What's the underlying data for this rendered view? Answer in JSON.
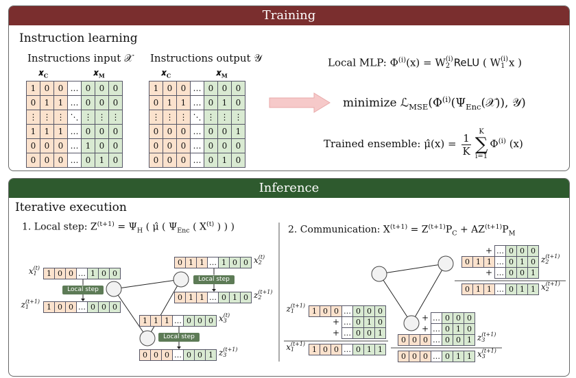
{
  "training": {
    "header": "Training",
    "heading": "Instruction learning",
    "input": {
      "title": [
        {
          "t": "Instructions input 𝒳"
        }
      ],
      "column_labels": [
        {
          "symbol": "𝒙",
          "subscript": "C"
        },
        {
          "symbol": "𝒙",
          "subscript": "M"
        }
      ],
      "rows": [
        [
          "1",
          "0",
          "0",
          "…",
          "0",
          "0",
          "0"
        ],
        [
          "0",
          "1",
          "1",
          "…",
          "0",
          "0",
          "0"
        ],
        [
          "⋮",
          "⋮",
          "⋮",
          "⋱",
          "⋮",
          "⋮",
          "⋮"
        ],
        [
          "1",
          "1",
          "1",
          "…",
          "0",
          "0",
          "0"
        ],
        [
          "0",
          "0",
          "0",
          "…",
          "1",
          "0",
          "0"
        ],
        [
          "0",
          "0",
          "0",
          "…",
          "0",
          "1",
          "0"
        ]
      ]
    },
    "output": {
      "title": [
        {
          "t": "Instructions output 𝒴"
        }
      ],
      "column_labels": [
        {
          "symbol": "𝒙",
          "subscript": "C"
        },
        {
          "symbol": "𝒙",
          "subscript": "M"
        }
      ],
      "rows": [
        [
          "1",
          "0",
          "0",
          "…",
          "0",
          "0",
          "0"
        ],
        [
          "0",
          "1",
          "1",
          "…",
          "0",
          "1",
          "0"
        ],
        [
          "⋮",
          "⋮",
          "⋮",
          "⋱",
          "⋮",
          "⋮",
          "⋮"
        ],
        [
          "0",
          "0",
          "0",
          "…",
          "0",
          "0",
          "1"
        ],
        [
          "0",
          "0",
          "0",
          "…",
          "0",
          "0",
          "0"
        ],
        [
          "0",
          "0",
          "0",
          "…",
          "0",
          "1",
          "0"
        ]
      ]
    },
    "formulas": [
      [
        {
          "t": "Local MLP: Φ"
        },
        {
          "sup": "(i)"
        },
        {
          "t": "(x) = W"
        },
        {
          "sup": "(i)",
          "sub": "2"
        },
        {
          "t": "ReLU"
        },
        {
          "t": " ( W"
        },
        {
          "sup": "(i)",
          "sub": "1"
        },
        {
          "t": "x )"
        }
      ],
      [
        {
          "t": "minimize ℒ"
        },
        {
          "sub": "MSE"
        },
        {
          "t": "(Φ"
        },
        {
          "sup": "(i)"
        },
        {
          "t": "(Ψ"
        },
        {
          "sub": "Enc"
        },
        {
          "t": "(𝒳)), 𝒴)"
        }
      ],
      [
        {
          "t": "Trained ensemble: μ̂(x) = "
        },
        {
          "frac": [
            "1",
            "K"
          ]
        },
        {
          "sum": "∑",
          "over": "K",
          "under": "i=1"
        },
        {
          "t": "Φ"
        },
        {
          "sup": "(i)"
        },
        {
          "t": " (x)"
        }
      ]
    ]
  },
  "inference": {
    "header": "Inference",
    "heading": "Iterative execution",
    "local_step": [
      {
        "t": "1. Local step: Z"
      },
      {
        "sup": "(t+1)"
      },
      {
        "t": " = Ψ"
      },
      {
        "sub": "H"
      },
      {
        "t": " ( μ̂ ( Ψ"
      },
      {
        "sub": "Enc"
      },
      {
        "t": " ( X"
      },
      {
        "sup": "(t)"
      },
      {
        "t": " ) ) )"
      }
    ],
    "communication": [
      {
        "t": "2. Communication: X"
      },
      {
        "sup": "(t+1)"
      },
      {
        "t": " = Z"
      },
      {
        "sup": "(t+1)"
      },
      {
        "t": "P"
      },
      {
        "sub": "C"
      },
      {
        "t": " + AZ"
      },
      {
        "sup": "(t+1)"
      },
      {
        "t": "P"
      },
      {
        "sub": "M"
      }
    ],
    "left": {
      "vectors": [
        {
          "label": [
            {
              "t": "x"
            },
            {
              "sup": "(t)",
              "sub": "1"
            }
          ],
          "cells": [
            "1",
            "0",
            "0",
            "…",
            "1",
            "0",
            "0"
          ]
        },
        {
          "label": [
            {
              "t": "z"
            },
            {
              "sup": "(t+1)",
              "sub": "1"
            }
          ],
          "cells": [
            "1",
            "0",
            "0",
            "…",
            "0",
            "0",
            "0"
          ]
        },
        {
          "label": [
            {
              "t": "x"
            },
            {
              "sup": "(t)",
              "sub": "2"
            }
          ],
          "cells": [
            "0",
            "1",
            "1",
            "…",
            "1",
            "0",
            "0"
          ]
        },
        {
          "label": [
            {
              "t": "z"
            },
            {
              "sup": "(t+1)",
              "sub": "2"
            }
          ],
          "cells": [
            "0",
            "1",
            "1",
            "…",
            "0",
            "1",
            "0"
          ]
        },
        {
          "label": [
            {
              "t": "x"
            },
            {
              "sup": "(t)",
              "sub": "3"
            }
          ],
          "cells": [
            "1",
            "1",
            "1",
            "…",
            "0",
            "0",
            "0"
          ]
        },
        {
          "label": [
            {
              "t": "z"
            },
            {
              "sup": "(t+1)",
              "sub": "3"
            }
          ],
          "cells": [
            "0",
            "0",
            "0",
            "…",
            "0",
            "0",
            "1"
          ]
        }
      ],
      "badges": [
        "Local step",
        "Local step",
        "Local step"
      ]
    },
    "right": {
      "groups": [
        {
          "label": [
            {
              "t": "z"
            },
            {
              "sup": "(t+1)",
              "sub": "1"
            }
          ],
          "rows": [
            {
              "cells": [
                "1",
                "0",
                "0",
                "…",
                "0",
                "0",
                "0"
              ]
            },
            {
              "prefix": "+",
              "cells": [
                null,
                null,
                null,
                "…",
                "0",
                "1",
                "0"
              ]
            },
            {
              "prefix": "+",
              "cells": [
                null,
                null,
                null,
                "…",
                "0",
                "0",
                "1"
              ]
            }
          ],
          "result": {
            "label": [
              {
                "t": "x"
              },
              {
                "sup": "(t+1)",
                "sub": "1"
              }
            ],
            "cells": [
              "1",
              "0",
              "0",
              "…",
              "0",
              "1",
              "1"
            ]
          }
        },
        {
          "label": [
            {
              "t": "z"
            },
            {
              "sup": "(t+1)",
              "sub": "2"
            }
          ],
          "rows": [
            {
              "prefix": "+",
              "cells": [
                null,
                null,
                null,
                "…",
                "0",
                "0",
                "0"
              ]
            },
            {
              "cells": [
                "0",
                "1",
                "1",
                "…",
                "0",
                "1",
                "0"
              ]
            },
            {
              "prefix": "+",
              "cells": [
                null,
                null,
                null,
                "…",
                "0",
                "0",
                "1"
              ]
            }
          ],
          "result": {
            "label": [
              {
                "t": "x"
              },
              {
                "sup": "(t+1)",
                "sub": "2"
              }
            ],
            "cells": [
              "0",
              "1",
              "1",
              "…",
              "0",
              "1",
              "1"
            ]
          }
        },
        {
          "label": [
            {
              "t": "z"
            },
            {
              "sup": "(t+1)",
              "sub": "3"
            }
          ],
          "rows": [
            {
              "prefix": "+",
              "cells": [
                null,
                null,
                null,
                "…",
                "0",
                "0",
                "0"
              ]
            },
            {
              "prefix": "+",
              "cells": [
                null,
                null,
                null,
                "…",
                "0",
                "1",
                "0"
              ]
            },
            {
              "cells": [
                "0",
                "0",
                "0",
                "…",
                "0",
                "0",
                "1"
              ]
            }
          ],
          "result": {
            "label": [
              {
                "t": "x"
              },
              {
                "sup": "(t+1)",
                "sub": "3"
              }
            ],
            "cells": [
              "0",
              "0",
              "0",
              "…",
              "0",
              "1",
              "1"
            ]
          }
        }
      ]
    }
  }
}
